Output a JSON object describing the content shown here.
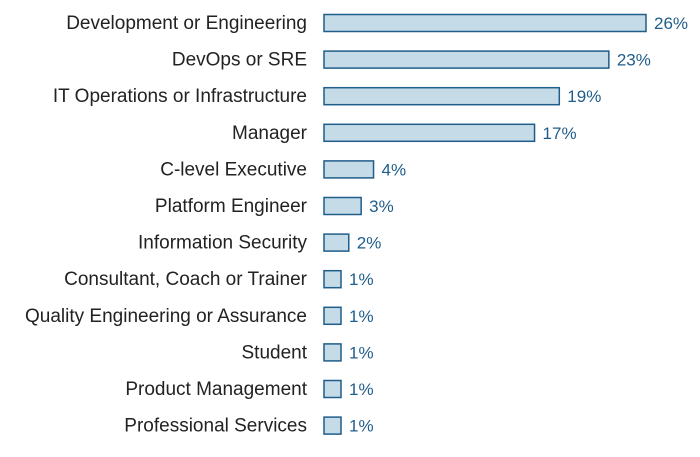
{
  "chart_data": {
    "type": "bar",
    "orientation": "horizontal",
    "title": "",
    "xlabel": "",
    "ylabel": "",
    "categories": [
      "Development or Engineering",
      "DevOps or SRE",
      "IT Operations or Infrastructure",
      "Manager",
      "C-level Executive",
      "Platform Engineer",
      "Information Security",
      "Consultant, Coach or Trainer",
      "Quality Engineering or Assurance",
      "Student",
      "Product Management",
      "Professional Services"
    ],
    "values": [
      26,
      23,
      19,
      17,
      4,
      3,
      2,
      1,
      1,
      1,
      1,
      1
    ],
    "value_labels": [
      "26%",
      "23%",
      "19%",
      "17%",
      "4%",
      "3%",
      "2%",
      "1%",
      "1%",
      "1%",
      "1%",
      "1%"
    ],
    "xlim": [
      0,
      26
    ],
    "grid": false,
    "legend": "none",
    "colors": {
      "bar_fill": "#c5dbe7",
      "bar_stroke": "#1f5d8a",
      "value_text": "#1f5d8a",
      "label_text": "#222222"
    }
  }
}
